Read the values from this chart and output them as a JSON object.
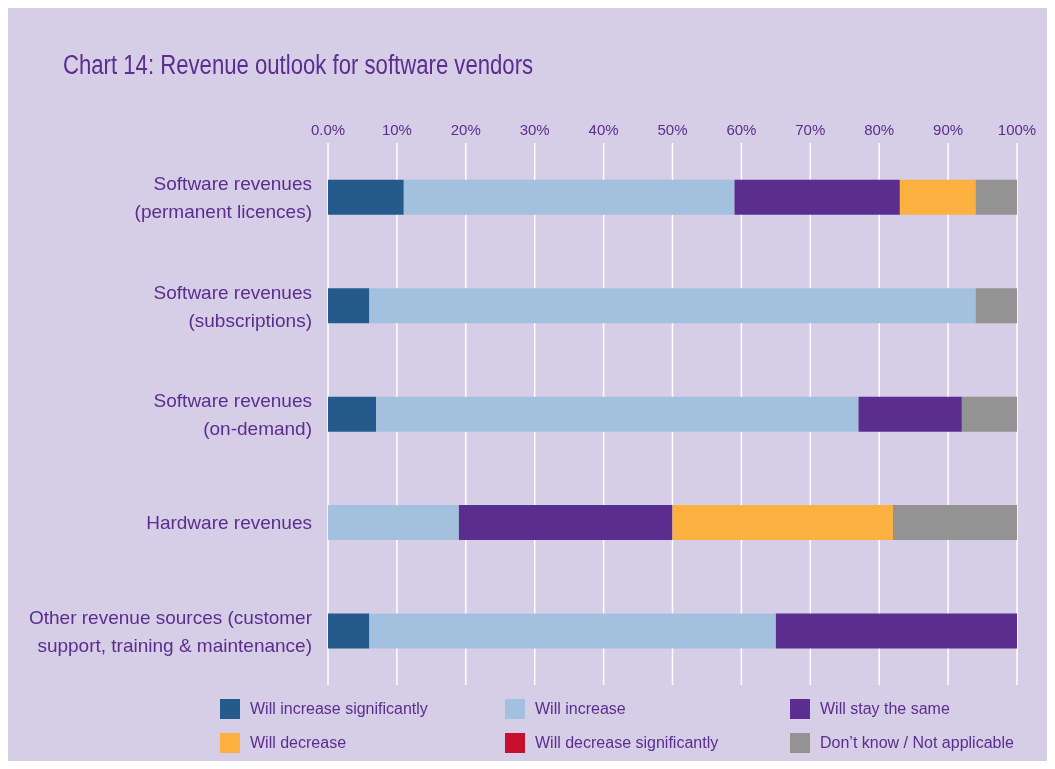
{
  "chart_data": {
    "type": "bar",
    "orientation": "horizontal",
    "stacked": true,
    "title": "Chart 14: Revenue outlook for software vendors",
    "categories": [
      "Software revenues\n(permanent licences)",
      "Software revenues\n(subscriptions)",
      "Software revenues\n(on-demand)",
      "Hardware revenues",
      "Other revenue sources (customer\nsupport, training & maintenance)"
    ],
    "series": [
      {
        "name": "Will increase significantly",
        "color": "#245a8c",
        "values": [
          11,
          6,
          7,
          0,
          6
        ]
      },
      {
        "name": "Will increase",
        "color": "#a3c0de",
        "values": [
          48,
          88,
          70,
          19,
          59
        ]
      },
      {
        "name": "Will stay the same",
        "color": "#5b2d8e",
        "values": [
          24,
          0,
          15,
          31,
          35
        ]
      },
      {
        "name": "Will decrease",
        "color": "#fbb040",
        "values": [
          11,
          0,
          0,
          32,
          0
        ]
      },
      {
        "name": "Will decrease significantly",
        "color": "#c8102e",
        "values": [
          0,
          0,
          0,
          0,
          0
        ]
      },
      {
        "name": "Don’t know / Not applicable",
        "color": "#939393",
        "values": [
          6,
          6,
          8,
          18,
          0
        ]
      }
    ],
    "xlim": [
      0,
      100
    ],
    "xticks": [
      {
        "value": 0,
        "label": "0.0%"
      },
      {
        "value": 10,
        "label": "10%"
      },
      {
        "value": 20,
        "label": "20%"
      },
      {
        "value": 30,
        "label": "30%"
      },
      {
        "value": 40,
        "label": "40%"
      },
      {
        "value": 50,
        "label": "50%"
      },
      {
        "value": 60,
        "label": "60%"
      },
      {
        "value": 70,
        "label": "70%"
      },
      {
        "value": 80,
        "label": "80%"
      },
      {
        "value": 90,
        "label": "90%"
      },
      {
        "value": 100,
        "label": "100%"
      }
    ],
    "grid": "x",
    "legend": "bottom"
  }
}
